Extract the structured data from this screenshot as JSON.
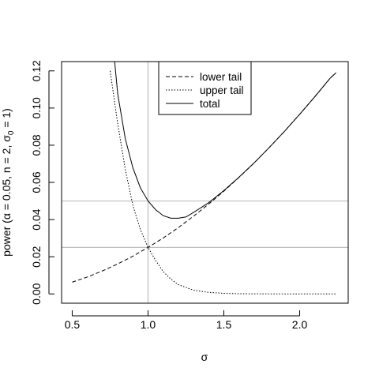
{
  "chart_data": {
    "type": "line",
    "xlabel": "σ",
    "ylabel": {
      "prefix": "power (α = 0.05, n = 2, σ",
      "subscript": "0",
      "suffix": " = 1)"
    },
    "xlim": [
      0.43,
      2.32
    ],
    "ylim": [
      -0.005,
      0.125
    ],
    "x_ticks": [
      0.5,
      1.0,
      1.5,
      2.0
    ],
    "x_tick_labels": [
      "0.5",
      "1.0",
      "1.5",
      "2.0"
    ],
    "y_ticks": [
      0.0,
      0.02,
      0.04,
      0.06,
      0.08,
      0.1,
      0.12
    ],
    "y_tick_labels": [
      "0.00",
      "0.02",
      "0.04",
      "0.06",
      "0.08",
      "0.10",
      "0.12"
    ],
    "reference_lines": {
      "vertical": [
        1.0
      ],
      "horizontal": [
        0.025,
        0.05
      ],
      "color": "#bebebe"
    },
    "legend": {
      "position": "top-center",
      "entries": [
        {
          "label": "lower tail",
          "dash": "dashed"
        },
        {
          "label": "upper tail",
          "dash": "dotted"
        },
        {
          "label": "total",
          "dash": "solid"
        }
      ]
    },
    "series": [
      {
        "name": "lower tail",
        "x": [
          0.5,
          0.6,
          0.7,
          0.8,
          0.9,
          1.0,
          1.1,
          1.2,
          1.3,
          1.4,
          1.5,
          1.6,
          1.7,
          1.8,
          1.9,
          2.0,
          2.1,
          2.2,
          2.24
        ],
        "values": [
          0.0063,
          0.0091,
          0.0124,
          0.0161,
          0.0203,
          0.025,
          0.0301,
          0.0357,
          0.0418,
          0.0483,
          0.0553,
          0.0627,
          0.0705,
          0.0788,
          0.0875,
          0.0966,
          0.1061,
          0.116,
          0.119
        ]
      },
      {
        "name": "upper tail",
        "x": [
          0.75,
          0.8,
          0.85,
          0.9,
          0.95,
          1.0,
          1.05,
          1.1,
          1.15,
          1.2,
          1.3,
          1.4,
          1.5,
          1.6,
          1.8,
          2.0,
          2.24
        ],
        "values": [
          0.12,
          0.0915,
          0.067,
          0.0475,
          0.0345,
          0.025,
          0.018,
          0.012,
          0.008,
          0.005,
          0.002,
          0.0008,
          0.0003,
          0.0001,
          0.0,
          0.0,
          0.0
        ]
      },
      {
        "name": "total",
        "x": [
          0.78,
          0.8,
          0.85,
          0.9,
          0.95,
          1.0,
          1.05,
          1.1,
          1.15,
          1.2,
          1.25,
          1.3,
          1.4,
          1.5,
          1.6,
          1.7,
          1.8,
          1.9,
          2.0,
          2.1,
          2.2,
          2.24
        ],
        "values": [
          0.125,
          0.1076,
          0.0835,
          0.0678,
          0.057,
          0.05,
          0.0453,
          0.0421,
          0.0407,
          0.0407,
          0.0414,
          0.0438,
          0.0491,
          0.0556,
          0.0628,
          0.0705,
          0.0788,
          0.0875,
          0.0966,
          0.1061,
          0.116,
          0.119
        ]
      }
    ]
  }
}
